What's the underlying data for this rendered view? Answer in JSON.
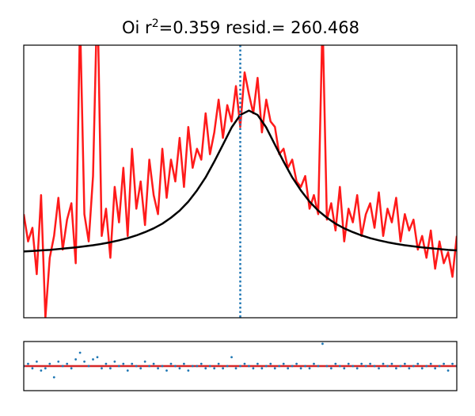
{
  "title_parts": [
    "Oi  r",
    "2",
    "=0.359 resid.= 260.468"
  ],
  "chart_data": [
    {
      "type": "line",
      "xlim": [
        0,
        100
      ],
      "ylim": [
        0,
        100
      ],
      "series": [
        {
          "color": "#ff1a1a",
          "x": [
            0,
            1,
            2,
            3,
            4,
            5,
            6,
            7,
            8,
            9,
            10,
            11,
            12,
            13,
            14,
            15,
            16,
            17,
            18,
            19,
            20,
            21,
            22,
            23,
            24,
            25,
            26,
            27,
            28,
            29,
            30,
            31,
            32,
            33,
            34,
            35,
            36,
            37,
            38,
            39,
            40,
            41,
            42,
            43,
            44,
            45,
            46,
            47,
            48,
            49,
            50,
            51,
            52,
            53,
            54,
            55,
            56,
            57,
            58,
            59,
            60,
            61,
            62,
            63,
            64,
            65,
            66,
            67,
            68,
            69,
            70,
            71,
            72,
            73,
            74,
            75,
            76,
            77,
            78,
            79,
            80,
            81,
            82,
            83,
            84,
            85,
            86,
            87,
            88,
            89,
            90,
            91,
            92,
            93,
            94,
            95,
            96,
            97,
            98,
            99,
            100
          ],
          "values": [
            38,
            28,
            33,
            16,
            45,
            0,
            22,
            30,
            44,
            25,
            36,
            42,
            20,
            110,
            38,
            28,
            52,
            120,
            30,
            40,
            22,
            48,
            35,
            55,
            30,
            62,
            40,
            50,
            34,
            58,
            45,
            38,
            62,
            44,
            58,
            50,
            66,
            48,
            70,
            55,
            62,
            58,
            75,
            60,
            68,
            80,
            66,
            78,
            72,
            85,
            70,
            90,
            82,
            75,
            88,
            68,
            80,
            72,
            70,
            60,
            62,
            55,
            58,
            50,
            48,
            52,
            40,
            45,
            38,
            110,
            36,
            42,
            32,
            48,
            28,
            40,
            35,
            45,
            30,
            38,
            42,
            33,
            46,
            30,
            40,
            35,
            44,
            28,
            38,
            32,
            36,
            25,
            30,
            22,
            32,
            18,
            28,
            20,
            24,
            15,
            30
          ]
        },
        {
          "color": "#000000",
          "x": [
            0,
            2,
            4,
            6,
            8,
            10,
            12,
            14,
            16,
            18,
            20,
            22,
            24,
            26,
            28,
            30,
            32,
            34,
            36,
            38,
            40,
            42,
            44,
            46,
            48,
            50,
            52,
            54,
            56,
            58,
            60,
            62,
            64,
            66,
            68,
            70,
            72,
            74,
            76,
            78,
            80,
            82,
            84,
            86,
            88,
            90,
            92,
            94,
            96,
            98,
            100
          ],
          "values": [
            24.3,
            24.5,
            24.7,
            24.9,
            25.2,
            25.5,
            25.8,
            26.2,
            26.6,
            27.1,
            27.7,
            28.4,
            29.2,
            30.2,
            31.4,
            32.8,
            34.5,
            36.7,
            39.3,
            42.6,
            46.7,
            51.5,
            57.3,
            63.5,
            69.8,
            74.4,
            76.0,
            74.4,
            69.8,
            63.5,
            57.3,
            51.5,
            46.7,
            42.6,
            39.3,
            36.7,
            34.5,
            32.8,
            31.4,
            30.2,
            29.2,
            28.4,
            27.7,
            27.1,
            26.6,
            26.2,
            25.8,
            25.5,
            25.2,
            24.9,
            24.7
          ]
        }
      ],
      "vline": {
        "x": 50,
        "color": "#1f77b4"
      }
    },
    {
      "type": "scatter",
      "xlim": [
        0,
        100
      ],
      "ylim": [
        -11,
        11
      ],
      "x": [
        0,
        1,
        2,
        3,
        4,
        5,
        6,
        7,
        8,
        9,
        10,
        11,
        12,
        13,
        14,
        15,
        16,
        17,
        18,
        19,
        20,
        21,
        22,
        23,
        24,
        25,
        26,
        27,
        28,
        29,
        30,
        31,
        32,
        33,
        34,
        35,
        36,
        37,
        38,
        39,
        40,
        41,
        42,
        43,
        44,
        45,
        46,
        47,
        48,
        49,
        50,
        51,
        52,
        53,
        54,
        55,
        56,
        57,
        58,
        59,
        60,
        61,
        62,
        63,
        64,
        65,
        66,
        67,
        68,
        69,
        70,
        71,
        72,
        73,
        74,
        75,
        76,
        77,
        78,
        79,
        80,
        81,
        82,
        83,
        84,
        85,
        86,
        87,
        88,
        89,
        90,
        91,
        92,
        93,
        94,
        95,
        96,
        97,
        98,
        99,
        100
      ],
      "values": [
        0,
        1,
        -1,
        2,
        -2,
        -1,
        1,
        -5,
        2,
        0,
        1,
        -1,
        3,
        6,
        2,
        0,
        3,
        4,
        -1,
        1,
        -1,
        2,
        0,
        1,
        -2,
        1,
        0,
        -1,
        2,
        0,
        1,
        -1,
        0,
        -2,
        1,
        0,
        -1,
        1,
        -2,
        0,
        0,
        1,
        -1,
        0,
        -1,
        1,
        -1,
        0,
        4,
        -1,
        0,
        1,
        0,
        -1,
        1,
        -1,
        0,
        1,
        -1,
        0,
        1,
        -1,
        0,
        1,
        -1,
        0,
        -1,
        1,
        0,
        10,
        0,
        -1,
        1,
        0,
        -1,
        1,
        0,
        -1,
        1,
        0,
        1,
        0,
        -1,
        1,
        0,
        1,
        -1,
        0,
        1,
        -1,
        0,
        1,
        -1,
        0,
        1,
        -1,
        0,
        1,
        -2,
        1,
        0
      ],
      "color": "#1f77b4",
      "hline": {
        "y": 0,
        "color": "#d62728"
      }
    }
  ]
}
